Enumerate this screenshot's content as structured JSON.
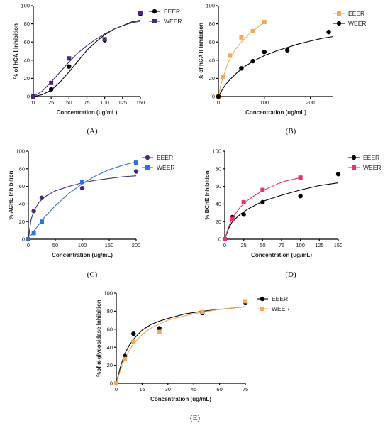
{
  "chart_data": [
    {
      "id": "A",
      "type": "scatter",
      "caption": "(A)",
      "xlabel": "Concentration (ug/mL)",
      "ylabel": "% of hCA I Inhibition",
      "xlim": [
        0,
        150
      ],
      "ylim": [
        0,
        100
      ],
      "xticks": [
        0,
        25,
        50,
        75,
        100,
        125,
        150
      ],
      "yticks": [
        0,
        20,
        40,
        60,
        80,
        100
      ],
      "grid": false,
      "legend": "top-right",
      "series": [
        {
          "name": "EEER",
          "color": "#000000",
          "marker": "circle",
          "x": [
            0,
            25,
            50,
            100,
            150
          ],
          "y": [
            0,
            8,
            33,
            62,
            91
          ],
          "fit_x": [
            0,
            12.5,
            25,
            37.5,
            50,
            62.5,
            75,
            87.5,
            100,
            112.5,
            125,
            137.5,
            150
          ],
          "fit_y": [
            0,
            2,
            7,
            16,
            27,
            39,
            51,
            60,
            68,
            74,
            78,
            82,
            84
          ]
        },
        {
          "name": "WEER",
          "color": "#4a2a78",
          "marker": "square",
          "x": [
            0,
            25,
            50,
            100,
            150
          ],
          "y": [
            0,
            15,
            42,
            63,
            92
          ],
          "fit_x": [
            0,
            12.5,
            25,
            37.5,
            50,
            62.5,
            75,
            87.5,
            100,
            112.5,
            125,
            137.5,
            150
          ],
          "fit_y": [
            0,
            6,
            16,
            27,
            38,
            48,
            56,
            63,
            69,
            74,
            78,
            81,
            83
          ]
        }
      ]
    },
    {
      "id": "B",
      "type": "scatter",
      "caption": "(B)",
      "xlabel": "Concentration (ug/mL)",
      "ylabel": "% of hCA II Inhibition",
      "xlim": [
        0,
        250
      ],
      "ylim": [
        0,
        100
      ],
      "xticks": [
        0,
        100,
        200
      ],
      "yticks": [
        0,
        20,
        40,
        60,
        80,
        100
      ],
      "grid": false,
      "legend": "top-right",
      "series": [
        {
          "name": "EEER",
          "color": "#f4a85a",
          "marker": "square",
          "x": [
            0,
            10,
            25,
            50,
            75,
            100
          ],
          "y": [
            0,
            22,
            45,
            65,
            72,
            82
          ],
          "fit_x": [
            0,
            5,
            10,
            20,
            30,
            40,
            50,
            60,
            70,
            80,
            90,
            100
          ],
          "fit_y": [
            0,
            12,
            21,
            36,
            46,
            54,
            60,
            65,
            70,
            74,
            78,
            82
          ]
        },
        {
          "name": "WEER",
          "color": "#000000",
          "marker": "circle",
          "x": [
            0,
            50,
            75,
            100,
            150,
            240
          ],
          "y": [
            0,
            31,
            39,
            49,
            51,
            71
          ],
          "fit_x": [
            0,
            10,
            20,
            40,
            60,
            80,
            100,
            125,
            150,
            175,
            200,
            225,
            250
          ],
          "fit_y": [
            0,
            9,
            16,
            26,
            34,
            40,
            45,
            50,
            54,
            58,
            61,
            64,
            66
          ]
        }
      ]
    },
    {
      "id": "C",
      "type": "scatter",
      "caption": "(C)",
      "xlabel": "Concentration (ug/mL)",
      "ylabel": "% AChE Inhibition",
      "xlim": [
        0,
        200
      ],
      "ylim": [
        0,
        100
      ],
      "xticks": [
        0,
        50,
        100,
        150,
        200
      ],
      "yticks": [
        0,
        20,
        40,
        60,
        80,
        100
      ],
      "grid": false,
      "legend": "top-right",
      "series": [
        {
          "name": "EEER",
          "color": "#4a2a78",
          "marker": "circle",
          "x": [
            0,
            10,
            25,
            100,
            200
          ],
          "y": [
            0,
            32,
            47,
            58,
            77
          ],
          "fit_x": [
            0,
            5,
            10,
            20,
            30,
            50,
            75,
            100,
            125,
            150,
            175,
            200
          ],
          "fit_y": [
            0,
            22,
            32,
            42,
            48,
            55,
            60,
            64,
            67,
            69,
            71,
            72
          ]
        },
        {
          "name": "WEER",
          "color": "#2f6fe0",
          "marker": "square",
          "x": [
            0,
            10,
            25,
            100,
            200
          ],
          "y": [
            0,
            7,
            20,
            65,
            87
          ],
          "fit_x": [
            0,
            10,
            20,
            30,
            50,
            75,
            100,
            125,
            150,
            175,
            200
          ],
          "fit_y": [
            0,
            9,
            17,
            25,
            38,
            52,
            63,
            72,
            79,
            84,
            88
          ]
        }
      ]
    },
    {
      "id": "D",
      "type": "scatter",
      "caption": "(D)",
      "xlabel": "Concentration (ug/mL)",
      "ylabel": "% BChE Inhibition",
      "xlim": [
        0,
        150
      ],
      "ylim": [
        0,
        100
      ],
      "xticks": [
        0,
        25,
        50,
        75,
        100,
        125,
        150
      ],
      "yticks": [
        0,
        20,
        40,
        60,
        80,
        100
      ],
      "grid": false,
      "legend": "top-right",
      "series": [
        {
          "name": "EEER",
          "color": "#000000",
          "marker": "circle",
          "x": [
            0,
            10,
            25,
            50,
            100,
            150
          ],
          "y": [
            0,
            25,
            28,
            42,
            49,
            74
          ],
          "fit_x": [
            0,
            5,
            10,
            20,
            30,
            50,
            75,
            100,
            125,
            150
          ],
          "fit_y": [
            0,
            12,
            20,
            28,
            34,
            43,
            50,
            56,
            61,
            64
          ]
        },
        {
          "name": "WEER",
          "color": "#e8336e",
          "marker": "square",
          "x": [
            0,
            10,
            25,
            50,
            100
          ],
          "y": [
            0,
            23,
            42,
            56,
            70
          ],
          "fit_x": [
            0,
            5,
            10,
            20,
            30,
            40,
            50,
            60,
            70,
            80,
            90,
            100
          ],
          "fit_y": [
            0,
            14,
            24,
            36,
            44,
            50,
            55,
            59,
            63,
            66,
            68,
            70
          ]
        }
      ]
    },
    {
      "id": "E",
      "type": "scatter",
      "caption": "(E)",
      "xlabel": "Concentration (ug/mL)",
      "ylabel": "%of α-glycosidase Inhibition",
      "xlim": [
        0,
        75
      ],
      "ylim": [
        0,
        100
      ],
      "xticks": [
        0,
        15,
        30,
        45,
        60,
        75
      ],
      "yticks": [
        0,
        20,
        40,
        60,
        80,
        100
      ],
      "grid": false,
      "legend": "top-right",
      "series": [
        {
          "name": "EEER",
          "color": "#000000",
          "marker": "circle",
          "x": [
            0,
            5,
            10,
            25,
            50,
            75
          ],
          "y": [
            0,
            30,
            55,
            61,
            78,
            89
          ],
          "fit_x": [
            0,
            2.5,
            5,
            7.5,
            10,
            15,
            20,
            25,
            30,
            40,
            50,
            60,
            75
          ],
          "fit_y": [
            0,
            19,
            33,
            42,
            49,
            59,
            65,
            69,
            72,
            77,
            80,
            82,
            85
          ]
        },
        {
          "name": "WEER",
          "color": "#f4a85a",
          "marker": "square",
          "x": [
            0,
            5,
            10,
            25,
            50,
            75
          ],
          "y": [
            0,
            27,
            46,
            57,
            79,
            91
          ],
          "fit_x": [
            0,
            2.5,
            5,
            7.5,
            10,
            15,
            20,
            25,
            30,
            40,
            50,
            60,
            75
          ],
          "fit_y": [
            0,
            15,
            27,
            36,
            44,
            54,
            61,
            66,
            70,
            75,
            79,
            82,
            85
          ]
        }
      ]
    }
  ]
}
